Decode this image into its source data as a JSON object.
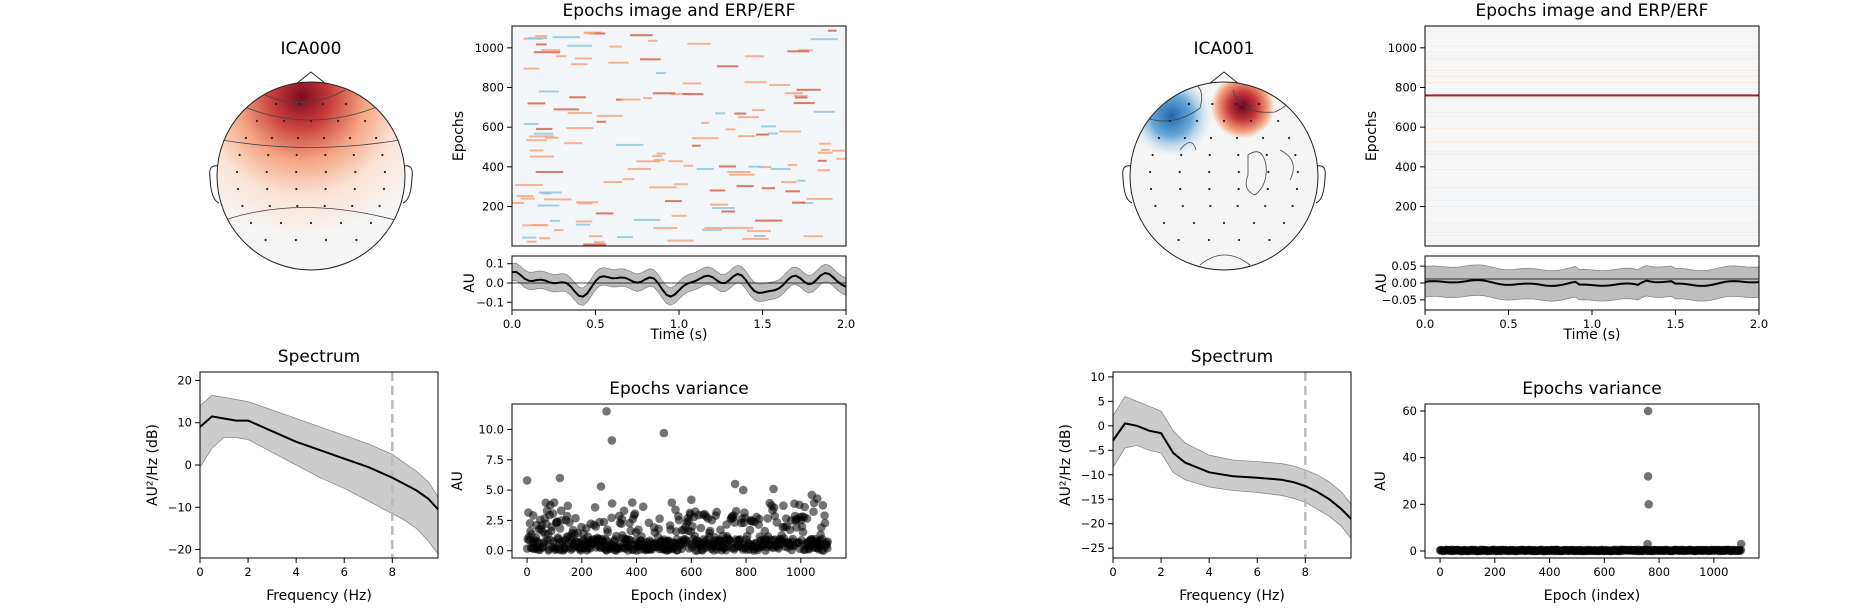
{
  "figure_title": "",
  "components": [
    {
      "name": "ICA000",
      "topomap": {
        "title": "ICA000",
        "colormap": "RdBu_r"
      },
      "epochs_image": {
        "title": "Epochs image and ERP/ERF",
        "ylabel": "Epochs",
        "yticks": [
          "200",
          "400",
          "600",
          "800",
          "1000"
        ],
        "ytick_values": [
          200,
          400,
          600,
          800,
          1000
        ],
        "ylim": [
          1,
          1110
        ],
        "colormap": "RdBu_r"
      },
      "erp": {
        "ylabel": "AU",
        "xlabel": "Time (s)",
        "xticks": [
          "0.0",
          "0.5",
          "1.0",
          "1.5",
          "2.0"
        ],
        "xtick_values": [
          0,
          0.5,
          1,
          1.5,
          2
        ],
        "yticks": [
          "0.1",
          "0.0",
          "−0.1"
        ],
        "ytick_values": [
          0.1,
          0,
          -0.1
        ],
        "xlim": [
          0,
          2
        ],
        "ylim": [
          -0.14,
          0.14
        ],
        "band_halfwidth": 0.045
      },
      "spectrum": {
        "title": "Spectrum",
        "xlabel": "Frequency (Hz)",
        "ylabel": "AU²/Hz (dB)",
        "xticks": [
          "0",
          "2",
          "4",
          "6",
          "8"
        ],
        "xtick_values": [
          0,
          2,
          4,
          6,
          8
        ],
        "yticks": [
          "20",
          "10",
          "0",
          "−10",
          "−20"
        ],
        "ytick_values": [
          20,
          10,
          0,
          -10,
          -20
        ],
        "xlim": [
          0,
          9.9
        ],
        "ylim": [
          -22,
          22
        ],
        "vline_x": 8,
        "x": [
          0,
          0.5,
          1,
          1.5,
          2,
          3,
          4,
          5,
          6,
          7,
          8,
          8.5,
          9,
          9.5,
          9.9
        ],
        "mean": [
          9,
          11.5,
          11,
          10.5,
          10.5,
          8,
          5.5,
          3.5,
          1.5,
          -0.5,
          -3,
          -4.5,
          -6,
          -8,
          -10.5
        ],
        "upper": [
          14,
          16.5,
          16,
          15.5,
          15,
          13,
          11,
          9,
          7,
          5,
          2.5,
          0.5,
          -1.5,
          -4,
          -7.5
        ],
        "lower": [
          -0.5,
          4,
          6.5,
          6.5,
          6,
          3,
          0,
          -3,
          -5.5,
          -8.5,
          -11.5,
          -13,
          -15,
          -18,
          -21
        ]
      },
      "variance": {
        "title": "Epochs variance",
        "xlabel": "Epoch (index)",
        "ylabel": "AU",
        "xticks": [
          "0",
          "200",
          "400",
          "600",
          "800",
          "1000"
        ],
        "xtick_values": [
          0,
          200,
          400,
          600,
          800,
          1000
        ],
        "yticks": [
          "0.0",
          "2.5",
          "5.0",
          "7.5",
          "10.0"
        ],
        "ytick_values": [
          0,
          2.5,
          5,
          7.5,
          10
        ],
        "xlim": [
          -55,
          1165
        ],
        "ylim": [
          -0.6,
          12.1
        ],
        "outliers": [
          {
            "x": 0,
            "y": 5.8
          },
          {
            "x": 120,
            "y": 6.0
          },
          {
            "x": 290,
            "y": 11.5
          },
          {
            "x": 310,
            "y": 9.1
          },
          {
            "x": 500,
            "y": 9.7
          },
          {
            "x": 270,
            "y": 5.3
          },
          {
            "x": 760,
            "y": 5.5
          },
          {
            "x": 790,
            "y": 5.0
          },
          {
            "x": 900,
            "y": 5.1
          },
          {
            "x": 1040,
            "y": 4.6
          },
          {
            "x": 1060,
            "y": 4.3
          },
          {
            "x": 600,
            "y": 4.2
          }
        ]
      }
    },
    {
      "name": "ICA001",
      "topomap": {
        "title": "ICA001",
        "colormap": "RdBu_r"
      },
      "epochs_image": {
        "title": "Epochs image and ERP/ERF",
        "ylabel": "Epochs",
        "yticks": [
          "200",
          "400",
          "600",
          "800",
          "1000"
        ],
        "ytick_values": [
          200,
          400,
          600,
          800,
          1000
        ],
        "ylim": [
          1,
          1110
        ],
        "colormap": "RdBu_r"
      },
      "erp": {
        "ylabel": "AU",
        "xlabel": "Time (s)",
        "xticks": [
          "0.0",
          "0.5",
          "1.0",
          "1.5",
          "2.0"
        ],
        "xtick_values": [
          0,
          0.5,
          1,
          1.5,
          2
        ],
        "yticks": [
          "0.05",
          "0.00",
          "−0.05"
        ],
        "ytick_values": [
          0.05,
          0,
          -0.05
        ],
        "xlim": [
          0,
          2
        ],
        "ylim": [
          -0.08,
          0.08
        ],
        "band_halfwidth": 0.045
      },
      "spectrum": {
        "title": "Spectrum",
        "xlabel": "Frequency (Hz)",
        "ylabel": "AU²/Hz (dB)",
        "xticks": [
          "0",
          "2",
          "4",
          "6",
          "8"
        ],
        "xtick_values": [
          0,
          2,
          4,
          6,
          8
        ],
        "yticks": [
          "10",
          "5",
          "0",
          "−5",
          "−10",
          "−15",
          "−20",
          "−25"
        ],
        "ytick_values": [
          10,
          5,
          0,
          -5,
          -10,
          -15,
          -20,
          -25
        ],
        "xlim": [
          0,
          9.9
        ],
        "ylim": [
          -27,
          11
        ],
        "vline_x": 8,
        "x": [
          0,
          0.5,
          1,
          1.5,
          2,
          2.5,
          3,
          4,
          5,
          6,
          7,
          7.5,
          8,
          8.5,
          9,
          9.5,
          9.9
        ],
        "mean": [
          -3,
          0.5,
          0,
          -1,
          -1.5,
          -5.5,
          -7.5,
          -9.5,
          -10.3,
          -10.6,
          -11,
          -11.5,
          -12.3,
          -13.5,
          -15,
          -17,
          -19
        ],
        "upper": [
          2,
          6,
          5,
          4,
          3,
          -1,
          -3.5,
          -6,
          -7,
          -7.3,
          -7.7,
          -8.2,
          -9,
          -10,
          -11.5,
          -13.5,
          -16
        ],
        "lower": [
          -8.5,
          -4.5,
          -4,
          -5,
          -5.5,
          -9.5,
          -11,
          -12.5,
          -13.2,
          -13.6,
          -14.2,
          -14.8,
          -15.6,
          -17,
          -18.5,
          -20.5,
          -23
        ]
      },
      "variance": {
        "title": "Epochs variance",
        "xlabel": "Epoch (index)",
        "ylabel": "AU",
        "xticks": [
          "0",
          "200",
          "400",
          "600",
          "800",
          "1000"
        ],
        "xtick_values": [
          0,
          200,
          400,
          600,
          800,
          1000
        ],
        "yticks": [
          "0",
          "20",
          "40",
          "60"
        ],
        "ytick_values": [
          0,
          20,
          40,
          60
        ],
        "xlim": [
          -55,
          1165
        ],
        "ylim": [
          -3,
          63
        ],
        "outliers": [
          {
            "x": 760,
            "y": 60
          },
          {
            "x": 760,
            "y": 32
          },
          {
            "x": 762,
            "y": 20
          },
          {
            "x": 758,
            "y": 3
          },
          {
            "x": 1100,
            "y": 3
          }
        ]
      }
    }
  ]
}
